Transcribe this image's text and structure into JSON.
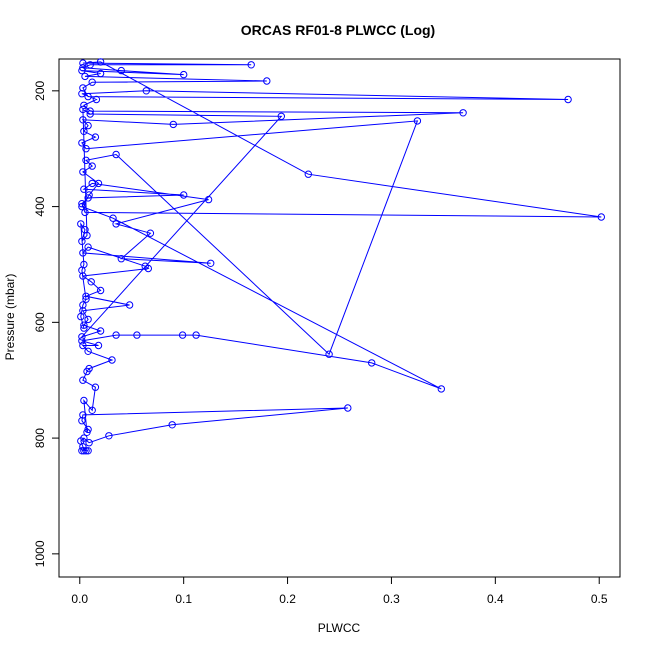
{
  "chart_data": {
    "type": "line",
    "title": "ORCAS RF01-8 PLWCC (Log)",
    "xlabel": "PLWCC",
    "ylabel": "Pressure (mbar)",
    "xlim": [
      -0.02,
      0.52
    ],
    "ylim": [
      1040,
      145
    ],
    "y_inverted": true,
    "x_ticks": [
      "0.0",
      "0.1",
      "0.2",
      "0.3",
      "0.4",
      "0.5"
    ],
    "x_tick_values": [
      0.0,
      0.1,
      0.2,
      0.3,
      0.4,
      0.5
    ],
    "y_ticks": [
      "200",
      "400",
      "600",
      "800",
      "1000"
    ],
    "y_tick_values": [
      200,
      400,
      600,
      800,
      1000
    ],
    "series_color": "#0000ff",
    "marker": "open-circle",
    "series": [
      {
        "values": [
          [
            0.002,
            822
          ],
          [
            0.004,
            822
          ],
          [
            0.008,
            822
          ],
          [
            0.006,
            822
          ],
          [
            0.003,
            815
          ],
          [
            0.001,
            805
          ],
          [
            0.004,
            800
          ],
          [
            0.009,
            808
          ],
          [
            0.028,
            796
          ],
          [
            0.089,
            777
          ],
          [
            0.258,
            748
          ],
          [
            0.003,
            760
          ],
          [
            0.002,
            770
          ],
          [
            0.008,
            785
          ],
          [
            0.007,
            790
          ],
          [
            0.004,
            735
          ],
          [
            0.012,
            752
          ],
          [
            0.015,
            712
          ],
          [
            0.003,
            700
          ],
          [
            0.007,
            685
          ],
          [
            0.009,
            680
          ],
          [
            0.031,
            665
          ],
          [
            0.008,
            650
          ],
          [
            0.003,
            640
          ],
          [
            0.018,
            640
          ],
          [
            0.002,
            632
          ],
          [
            0.035,
            622
          ],
          [
            0.055,
            622
          ],
          [
            0.099,
            622
          ],
          [
            0.112,
            622
          ],
          [
            0.281,
            670
          ],
          [
            0.348,
            715
          ],
          [
            0.032,
            420
          ],
          [
            0.002,
            400
          ],
          [
            0.009,
            380
          ],
          [
            0.018,
            360
          ],
          [
            0.003,
            340
          ],
          [
            0.012,
            330
          ],
          [
            0.006,
            320
          ],
          [
            0.035,
            310
          ],
          [
            0.24,
            655
          ],
          [
            0.325,
            252
          ],
          [
            0.006,
            300
          ],
          [
            0.002,
            290
          ],
          [
            0.015,
            280
          ],
          [
            0.004,
            270
          ],
          [
            0.008,
            260
          ],
          [
            0.003,
            250
          ],
          [
            0.09,
            258
          ],
          [
            0.369,
            238
          ],
          [
            0.01,
            235
          ],
          [
            0.004,
            225
          ],
          [
            0.016,
            215
          ],
          [
            0.002,
            205
          ],
          [
            0.064,
            200
          ],
          [
            0.47,
            215
          ],
          [
            0.008,
            210
          ],
          [
            0.003,
            195
          ],
          [
            0.012,
            185
          ],
          [
            0.18,
            183
          ],
          [
            0.005,
            175
          ],
          [
            0.02,
            170
          ],
          [
            0.002,
            165
          ],
          [
            0.1,
            172
          ],
          [
            0.04,
            165
          ],
          [
            0.003,
            160
          ],
          [
            0.01,
            155
          ],
          [
            0.165,
            155
          ],
          [
            0.003,
            152
          ],
          [
            0.02,
            150
          ],
          [
            0.22,
            344
          ],
          [
            0.502,
            418
          ],
          [
            0.005,
            410
          ],
          [
            0.002,
            395
          ],
          [
            0.008,
            385
          ],
          [
            0.1,
            380
          ],
          [
            0.004,
            370
          ],
          [
            0.012,
            360
          ],
          [
            0.124,
            388
          ],
          [
            0.035,
            430
          ],
          [
            0.068,
            446
          ],
          [
            0.04,
            490
          ],
          [
            0.126,
            498
          ],
          [
            0.003,
            480
          ],
          [
            0.008,
            470
          ],
          [
            0.063,
            503
          ],
          [
            0.066,
            507
          ],
          [
            0.003,
            520
          ],
          [
            0.011,
            530
          ],
          [
            0.02,
            545
          ],
          [
            0.006,
            555
          ],
          [
            0.048,
            570
          ],
          [
            0.003,
            580
          ],
          [
            0.008,
            595
          ],
          [
            0.004,
            605
          ],
          [
            0.02,
            615
          ],
          [
            0.002,
            625
          ],
          [
            0.194,
            244
          ],
          [
            0.01,
            240
          ],
          [
            0.003,
            232
          ],
          [
            0.007,
            450
          ],
          [
            0.002,
            460
          ],
          [
            0.005,
            440
          ],
          [
            0.001,
            430
          ],
          [
            0.004,
            500
          ],
          [
            0.002,
            510
          ],
          [
            0.006,
            560
          ],
          [
            0.003,
            570
          ],
          [
            0.001,
            590
          ],
          [
            0.004,
            610
          ]
        ]
      }
    ]
  }
}
